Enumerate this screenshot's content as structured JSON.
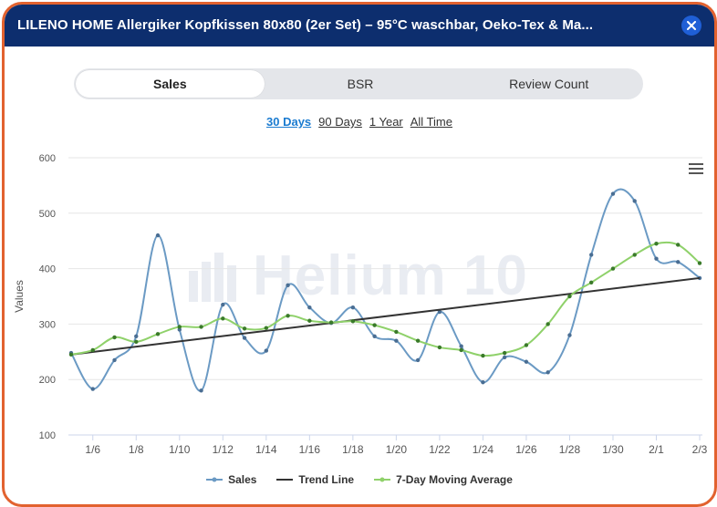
{
  "header": {
    "title": "LILENO HOME Allergiker Kopfkissen 80x80 (2er Set) – 95°C waschbar, Oeko-Tex & Ma..."
  },
  "tabs": [
    {
      "label": "Sales",
      "active": true
    },
    {
      "label": "BSR",
      "active": false
    },
    {
      "label": "Review Count",
      "active": false
    }
  ],
  "ranges": [
    {
      "label": "30 Days",
      "active": true
    },
    {
      "label": "90 Days",
      "active": false
    },
    {
      "label": "1 Year",
      "active": false
    },
    {
      "label": "All Time",
      "active": false
    }
  ],
  "watermark": "Helium 10",
  "colors": {
    "header_bg": "#0d2e6e",
    "border": "#e2622f",
    "sales": "#6b9ac4",
    "trend": "#333333",
    "moving_avg": "#8fd16a",
    "active_range": "#1a7bd0"
  },
  "chart_data": {
    "type": "line",
    "ylabel": "Values",
    "xlabel": "",
    "ylim": [
      100,
      600
    ],
    "yticks": [
      100,
      200,
      300,
      400,
      500,
      600
    ],
    "xticks": [
      "1/6",
      "1/8",
      "1/10",
      "1/12",
      "1/14",
      "1/16",
      "1/18",
      "1/20",
      "1/22",
      "1/24",
      "1/26",
      "1/28",
      "1/30",
      "2/1",
      "2/3"
    ],
    "x": [
      "1/5",
      "1/6",
      "1/7",
      "1/8",
      "1/9",
      "1/10",
      "1/11",
      "1/12",
      "1/13",
      "1/14",
      "1/15",
      "1/16",
      "1/17",
      "1/18",
      "1/19",
      "1/20",
      "1/21",
      "1/22",
      "1/23",
      "1/24",
      "1/25",
      "1/26",
      "1/27",
      "1/28",
      "1/29",
      "1/30",
      "1/31",
      "2/1",
      "2/2",
      "2/3"
    ],
    "grid": true,
    "legend_position": "bottom-center",
    "series": [
      {
        "name": "Sales",
        "values": [
          248,
          183,
          235,
          278,
          460,
          290,
          180,
          335,
          275,
          252,
          370,
          330,
          302,
          330,
          278,
          270,
          235,
          322,
          260,
          195,
          240,
          232,
          213,
          280,
          425,
          535,
          522,
          418,
          412,
          383
        ]
      },
      {
        "name": "Trend Line",
        "values": [
          245,
          250,
          255,
          259,
          264,
          269,
          274,
          278,
          283,
          288,
          293,
          297,
          302,
          307,
          312,
          316,
          321,
          326,
          331,
          335,
          340,
          345,
          350,
          354,
          359,
          364,
          369,
          373,
          378,
          383
        ]
      },
      {
        "name": "7-Day Moving Average",
        "values": [
          245,
          253,
          276,
          268,
          282,
          295,
          295,
          310,
          292,
          293,
          315,
          306,
          303,
          305,
          298,
          286,
          270,
          258,
          253,
          243,
          248,
          262,
          300,
          350,
          375,
          400,
          425,
          445,
          443,
          410
        ]
      }
    ]
  }
}
